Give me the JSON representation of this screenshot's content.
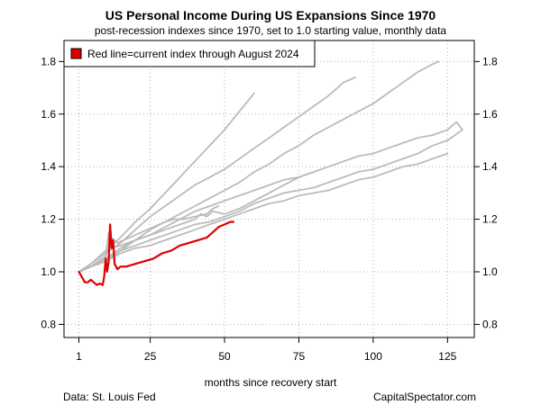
{
  "chart_data": {
    "type": "line",
    "title": "US Personal Income During US Expansions Since 1970",
    "subtitle": "post-recession indexes since 1970, set to 1.0 starting value, monthly data",
    "xlabel": "months since recovery start",
    "ylabel": "",
    "xlim": [
      -4,
      134
    ],
    "ylim": [
      0.75,
      1.88
    ],
    "x_ticks": [
      1,
      25,
      50,
      75,
      100,
      125
    ],
    "y_ticks": [
      0.8,
      1.0,
      1.2,
      1.4,
      1.6,
      1.8
    ],
    "y_tick_labels": [
      "0.8",
      "1.0",
      "1.2",
      "1.4",
      "1.6",
      "1.8"
    ],
    "grid": true,
    "legend": {
      "position": "top-left",
      "label": "Red line=current index through August 2024"
    },
    "colors": {
      "current": "#dd0000",
      "historical": "#bbbbbb"
    },
    "series": [
      {
        "color": "historical",
        "points": [
          [
            1,
            1.0
          ],
          [
            5,
            1.03
          ],
          [
            10,
            1.08
          ],
          [
            15,
            1.13
          ],
          [
            20,
            1.19
          ],
          [
            25,
            1.24
          ],
          [
            30,
            1.3
          ],
          [
            35,
            1.36
          ],
          [
            40,
            1.42
          ],
          [
            45,
            1.48
          ],
          [
            50,
            1.54
          ],
          [
            55,
            1.61
          ],
          [
            60,
            1.68
          ]
        ]
      },
      {
        "color": "historical",
        "points": [
          [
            1,
            1.0
          ],
          [
            5,
            1.03
          ],
          [
            10,
            1.07
          ],
          [
            15,
            1.11
          ],
          [
            20,
            1.16
          ],
          [
            25,
            1.21
          ],
          [
            30,
            1.25
          ],
          [
            35,
            1.29
          ],
          [
            40,
            1.33
          ],
          [
            45,
            1.36
          ],
          [
            50,
            1.39
          ],
          [
            55,
            1.43
          ],
          [
            60,
            1.47
          ],
          [
            65,
            1.51
          ],
          [
            70,
            1.55
          ],
          [
            75,
            1.59
          ],
          [
            80,
            1.63
          ],
          [
            85,
            1.67
          ],
          [
            90,
            1.72
          ],
          [
            94,
            1.74
          ]
        ]
      },
      {
        "color": "historical",
        "points": [
          [
            1,
            1.0
          ],
          [
            5,
            1.02
          ],
          [
            10,
            1.05
          ],
          [
            15,
            1.09
          ],
          [
            20,
            1.12
          ],
          [
            25,
            1.16
          ],
          [
            30,
            1.19
          ],
          [
            35,
            1.22
          ],
          [
            40,
            1.25
          ],
          [
            45,
            1.28
          ],
          [
            50,
            1.31
          ],
          [
            55,
            1.34
          ],
          [
            60,
            1.38
          ],
          [
            65,
            1.41
          ],
          [
            70,
            1.45
          ],
          [
            75,
            1.48
          ],
          [
            80,
            1.52
          ],
          [
            85,
            1.55
          ],
          [
            90,
            1.58
          ],
          [
            95,
            1.61
          ],
          [
            100,
            1.64
          ],
          [
            105,
            1.68
          ],
          [
            110,
            1.72
          ],
          [
            115,
            1.76
          ],
          [
            120,
            1.79
          ],
          [
            122,
            1.8
          ]
        ]
      },
      {
        "color": "historical",
        "points": [
          [
            1,
            1.0
          ],
          [
            5,
            1.02
          ],
          [
            10,
            1.04
          ],
          [
            15,
            1.08
          ],
          [
            20,
            1.12
          ],
          [
            25,
            1.14
          ],
          [
            30,
            1.17
          ],
          [
            35,
            1.2
          ],
          [
            40,
            1.23
          ],
          [
            45,
            1.25
          ],
          [
            50,
            1.27
          ],
          [
            55,
            1.29
          ],
          [
            60,
            1.31
          ],
          [
            65,
            1.33
          ],
          [
            70,
            1.35
          ],
          [
            75,
            1.36
          ],
          [
            80,
            1.38
          ],
          [
            85,
            1.4
          ],
          [
            90,
            1.42
          ],
          [
            95,
            1.44
          ],
          [
            100,
            1.45
          ],
          [
            105,
            1.47
          ],
          [
            110,
            1.49
          ],
          [
            115,
            1.51
          ],
          [
            120,
            1.52
          ],
          [
            125,
            1.54
          ],
          [
            128,
            1.57
          ],
          [
            130,
            1.54
          ]
        ]
      },
      {
        "color": "historical",
        "points": [
          [
            1,
            1.0
          ],
          [
            5,
            1.02
          ],
          [
            10,
            1.05
          ],
          [
            15,
            1.08
          ],
          [
            20,
            1.1
          ],
          [
            25,
            1.12
          ],
          [
            30,
            1.14
          ],
          [
            35,
            1.16
          ],
          [
            40,
            1.18
          ],
          [
            45,
            1.19
          ],
          [
            50,
            1.21
          ],
          [
            55,
            1.23
          ],
          [
            60,
            1.26
          ],
          [
            65,
            1.28
          ],
          [
            70,
            1.3
          ],
          [
            75,
            1.31
          ],
          [
            80,
            1.32
          ],
          [
            85,
            1.34
          ],
          [
            90,
            1.36
          ],
          [
            95,
            1.38
          ],
          [
            100,
            1.39
          ],
          [
            105,
            1.41
          ],
          [
            110,
            1.43
          ],
          [
            115,
            1.45
          ],
          [
            120,
            1.48
          ],
          [
            125,
            1.5
          ],
          [
            130,
            1.54
          ]
        ]
      },
      {
        "color": "historical",
        "points": [
          [
            1,
            1.0
          ],
          [
            5,
            1.02
          ],
          [
            8,
            1.03
          ],
          [
            10,
            1.06
          ],
          [
            11,
            1.15
          ],
          [
            12,
            1.09
          ],
          [
            15,
            1.1
          ],
          [
            20,
            1.12
          ],
          [
            25,
            1.14
          ],
          [
            30,
            1.16
          ],
          [
            35,
            1.18
          ],
          [
            40,
            1.2
          ],
          [
            42,
            1.22
          ],
          [
            44,
            1.21
          ],
          [
            46,
            1.23
          ],
          [
            50,
            1.22
          ],
          [
            55,
            1.24
          ],
          [
            60,
            1.27
          ],
          [
            65,
            1.3
          ],
          [
            70,
            1.33
          ],
          [
            75,
            1.36
          ],
          [
            80,
            1.38
          ]
        ]
      },
      {
        "color": "historical",
        "points": [
          [
            1,
            1.0
          ],
          [
            5,
            1.02
          ],
          [
            10,
            1.06
          ],
          [
            12,
            1.13
          ],
          [
            14,
            1.11
          ],
          [
            18,
            1.13
          ],
          [
            22,
            1.15
          ],
          [
            26,
            1.17
          ],
          [
            30,
            1.19
          ],
          [
            33,
            1.2
          ],
          [
            36,
            1.2
          ],
          [
            40,
            1.21
          ],
          [
            44,
            1.22
          ],
          [
            46,
            1.24
          ],
          [
            48,
            1.25
          ]
        ]
      },
      {
        "color": "historical",
        "points": [
          [
            1,
            1.0
          ],
          [
            5,
            1.02
          ],
          [
            10,
            1.04
          ],
          [
            15,
            1.07
          ],
          [
            20,
            1.09
          ],
          [
            25,
            1.1
          ],
          [
            30,
            1.12
          ],
          [
            35,
            1.14
          ],
          [
            40,
            1.16
          ],
          [
            45,
            1.18
          ],
          [
            50,
            1.2
          ],
          [
            55,
            1.22
          ],
          [
            60,
            1.24
          ],
          [
            65,
            1.26
          ],
          [
            70,
            1.27
          ],
          [
            75,
            1.29
          ],
          [
            80,
            1.3
          ],
          [
            85,
            1.31
          ],
          [
            90,
            1.33
          ],
          [
            95,
            1.35
          ],
          [
            100,
            1.36
          ],
          [
            105,
            1.38
          ],
          [
            110,
            1.4
          ],
          [
            115,
            1.41
          ],
          [
            120,
            1.43
          ],
          [
            125,
            1.45
          ]
        ]
      },
      {
        "color": "current",
        "points": [
          [
            1,
            1.0
          ],
          [
            2,
            0.98
          ],
          [
            3,
            0.96
          ],
          [
            4,
            0.96
          ],
          [
            5,
            0.97
          ],
          [
            6,
            0.96
          ],
          [
            7,
            0.95
          ],
          [
            8,
            0.955
          ],
          [
            9,
            0.95
          ],
          [
            9.5,
            0.98
          ],
          [
            10,
            1.05
          ],
          [
            10.5,
            1.0
          ],
          [
            11,
            1.04
          ],
          [
            11.5,
            1.18
          ],
          [
            12,
            1.09
          ],
          [
            12.5,
            1.12
          ],
          [
            13,
            1.03
          ],
          [
            14,
            1.01
          ],
          [
            15,
            1.02
          ],
          [
            17,
            1.02
          ],
          [
            20,
            1.03
          ],
          [
            23,
            1.04
          ],
          [
            26,
            1.05
          ],
          [
            29,
            1.07
          ],
          [
            32,
            1.08
          ],
          [
            35,
            1.1
          ],
          [
            38,
            1.11
          ],
          [
            41,
            1.12
          ],
          [
            44,
            1.13
          ],
          [
            46,
            1.15
          ],
          [
            48,
            1.17
          ],
          [
            50,
            1.18
          ],
          [
            52,
            1.19
          ],
          [
            53,
            1.19
          ]
        ]
      }
    ]
  },
  "footer": {
    "source": "Data: St. Louis Fed",
    "credit": "CapitalSpectator.com"
  }
}
